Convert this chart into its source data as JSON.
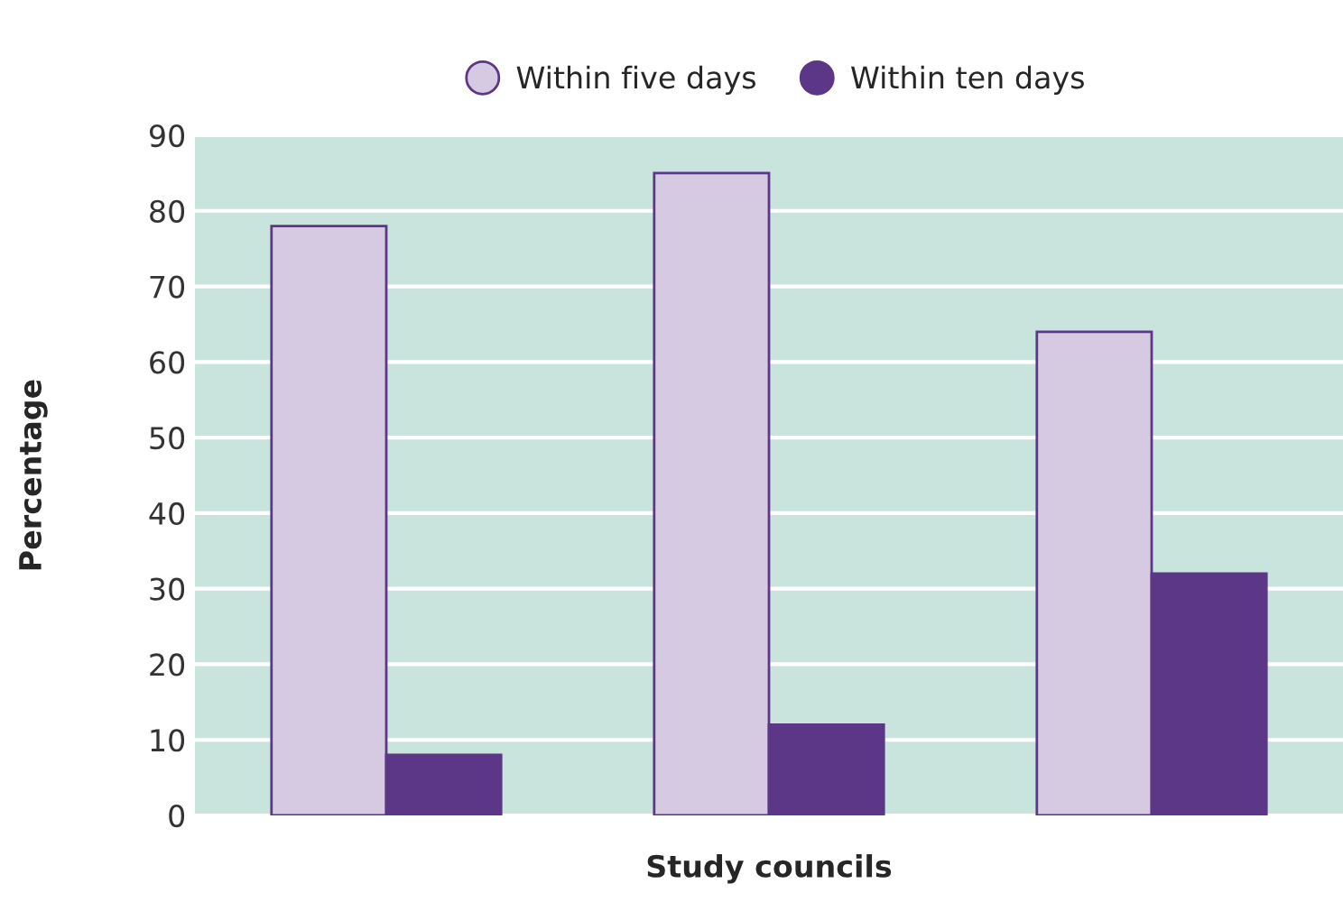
{
  "chart_data": {
    "type": "bar",
    "xlabel": "Study councils",
    "ylabel": "Percentage",
    "categories": [
      null,
      null,
      null
    ],
    "series": [
      {
        "name": "Within five days",
        "color": "#d5cae2",
        "values": [
          78,
          85,
          64
        ]
      },
      {
        "name": "Within ten days",
        "color": "#5d3787",
        "values": [
          8,
          12,
          32
        ]
      }
    ],
    "ylim": [
      0,
      90
    ],
    "yticks": [
      0,
      10,
      20,
      30,
      40,
      50,
      60,
      70,
      80,
      90
    ],
    "grid": "y",
    "legend": "top",
    "marker": "circle"
  }
}
